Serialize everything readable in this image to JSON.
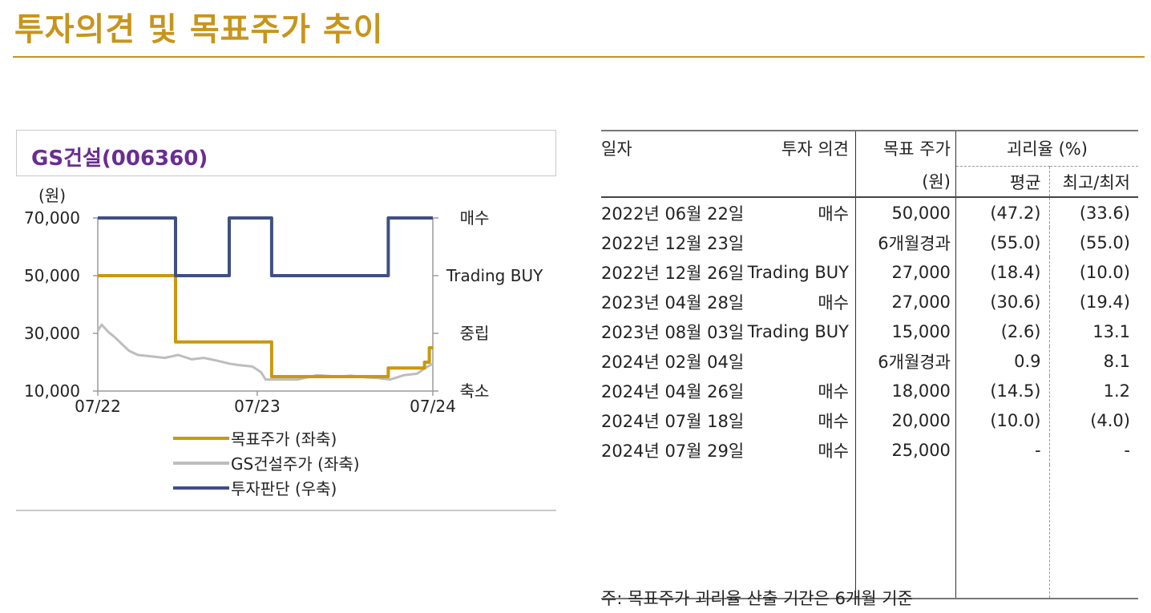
{
  "title": "투자의견 및 목표주가 추이",
  "chart_panel_title": "GS건설(006360)",
  "chart_data": {
    "type": "line",
    "ylabel": "(원)",
    "y_ticks": [
      "70,000",
      "50,000",
      "30,000",
      "10,000"
    ],
    "ylim": [
      10000,
      70000
    ],
    "x_ticks": [
      "07/22",
      "07/23",
      "07/24"
    ],
    "right_axis_ticks": [
      "매수",
      "Trading BUY",
      "중립",
      "축소"
    ],
    "series": [
      {
        "name": "목표주가 (좌축)",
        "color": "#c9980e",
        "points": [
          [
            "2022-07-01",
            50000
          ],
          [
            "2022-12-26",
            50000
          ],
          [
            "2022-12-26",
            27000
          ],
          [
            "2023-08-03",
            27000
          ],
          [
            "2023-08-03",
            15000
          ],
          [
            "2024-04-26",
            15000
          ],
          [
            "2024-04-26",
            18000
          ],
          [
            "2024-07-18",
            18000
          ],
          [
            "2024-07-18",
            20000
          ],
          [
            "2024-07-29",
            20000
          ],
          [
            "2024-07-29",
            25000
          ],
          [
            "2024-08-06",
            25000
          ]
        ]
      },
      {
        "name": "GS건설주가 (좌축)",
        "color": "#bdbdbd",
        "points": [
          [
            "2022-07-01",
            31000
          ],
          [
            "2022-07-10",
            33000
          ],
          [
            "2022-07-25",
            30500
          ],
          [
            "2022-08-10",
            28500
          ],
          [
            "2022-09-10",
            24000
          ],
          [
            "2022-10-01",
            22500
          ],
          [
            "2022-11-01",
            22000
          ],
          [
            "2022-12-01",
            21500
          ],
          [
            "2023-01-01",
            22500
          ],
          [
            "2023-02-01",
            21000
          ],
          [
            "2023-03-01",
            21500
          ],
          [
            "2023-04-01",
            20500
          ],
          [
            "2023-04-28",
            19500
          ],
          [
            "2023-05-20",
            19000
          ],
          [
            "2023-06-20",
            18500
          ],
          [
            "2023-07-10",
            16500
          ],
          [
            "2023-07-20",
            14000
          ],
          [
            "2023-08-20",
            14000
          ],
          [
            "2023-10-01",
            14000
          ],
          [
            "2023-11-15",
            15500
          ],
          [
            "2024-01-01",
            15000
          ],
          [
            "2024-02-01",
            15300
          ],
          [
            "2024-03-01",
            14800
          ],
          [
            "2024-04-01",
            14500
          ],
          [
            "2024-05-01",
            14000
          ],
          [
            "2024-06-01",
            15500
          ],
          [
            "2024-07-01",
            16000
          ],
          [
            "2024-07-20",
            18000
          ],
          [
            "2024-08-06",
            19500
          ]
        ]
      },
      {
        "name": "투자판단 (우축)",
        "color": "#3f4f82",
        "levels": [
          "매수",
          "Trading BUY"
        ],
        "points": [
          [
            "2022-07-01",
            "매수"
          ],
          [
            "2022-12-26",
            "매수"
          ],
          [
            "2022-12-26",
            "Trading BUY"
          ],
          [
            "2023-04-28",
            "Trading BUY"
          ],
          [
            "2023-04-28",
            "매수"
          ],
          [
            "2023-08-03",
            "매수"
          ],
          [
            "2023-08-03",
            "Trading BUY"
          ],
          [
            "2024-04-26",
            "Trading BUY"
          ],
          [
            "2024-04-26",
            "매수"
          ],
          [
            "2024-08-06",
            "매수"
          ]
        ]
      }
    ]
  },
  "table": {
    "headers": {
      "date": "일자",
      "opinion": "투자 의견",
      "target_line1": "목표 주가",
      "target_line2": "(원)",
      "ratio": "괴리율 (%)",
      "avg": "평균",
      "maxmin": "최고/최저"
    },
    "rows": [
      {
        "date": "2022년 06월 22일",
        "opinion": "매수",
        "target": "50,000",
        "avg": "(47.2)",
        "maxmin": "(33.6)"
      },
      {
        "date": "2022년 12월 23일",
        "opinion": "",
        "target": "6개월경과",
        "avg": "(55.0)",
        "maxmin": "(55.0)"
      },
      {
        "date": "2022년 12월 26일",
        "opinion": "Trading BUY",
        "target": "27,000",
        "avg": "(18.4)",
        "maxmin": "(10.0)"
      },
      {
        "date": "2023년 04월 28일",
        "opinion": "매수",
        "target": "27,000",
        "avg": "(30.6)",
        "maxmin": "(19.4)"
      },
      {
        "date": "2023년 08월 03일",
        "opinion": "Trading BUY",
        "target": "15,000",
        "avg": "(2.6)",
        "maxmin": "13.1"
      },
      {
        "date": "2024년 02월 04일",
        "opinion": "",
        "target": "6개월경과",
        "avg": "0.9",
        "maxmin": "8.1"
      },
      {
        "date": "2024년 04월 26일",
        "opinion": "매수",
        "target": "18,000",
        "avg": "(14.5)",
        "maxmin": "1.2"
      },
      {
        "date": "2024년 07월 18일",
        "opinion": "매수",
        "target": "20,000",
        "avg": "(10.0)",
        "maxmin": "(4.0)"
      },
      {
        "date": "2024년 07월 29일",
        "opinion": "매수",
        "target": "25,000",
        "avg": "-",
        "maxmin": "-"
      }
    ]
  },
  "note": "주: 목표주가 괴리율 산출 기간은 6개월 기준"
}
